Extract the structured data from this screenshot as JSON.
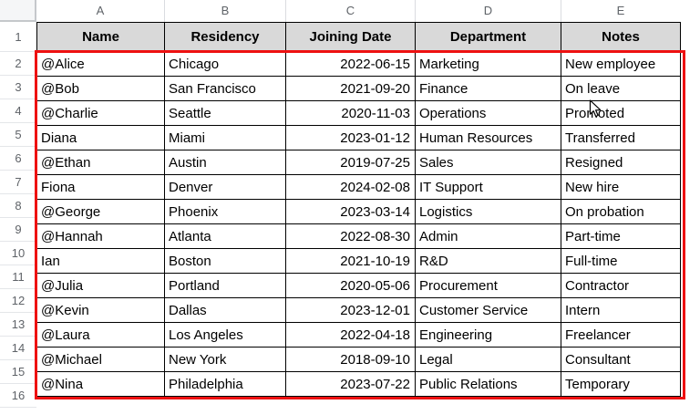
{
  "colors": {
    "table_header_bg": "#d9d9d9",
    "highlight_border": "#ee1111",
    "grid_header_text": "#5f6368"
  },
  "grid": {
    "column_letters": [
      "A",
      "B",
      "C",
      "D",
      "E"
    ],
    "row_numbers": [
      "1",
      "2",
      "3",
      "4",
      "5",
      "6",
      "7",
      "8",
      "9",
      "10",
      "11",
      "12",
      "13",
      "14",
      "15",
      "16"
    ]
  },
  "table": {
    "headers": [
      "Name",
      "Residency",
      "Joining Date",
      "Department",
      "Notes"
    ],
    "rows": [
      {
        "name": "@Alice",
        "residency": "Chicago",
        "joining_date": "2022-06-15",
        "department": "Marketing",
        "notes": "New employee"
      },
      {
        "name": "@Bob",
        "residency": "San Francisco",
        "joining_date": "2021-09-20",
        "department": "Finance",
        "notes": "On leave"
      },
      {
        "name": "@Charlie",
        "residency": "Seattle",
        "joining_date": "2020-11-03",
        "department": "Operations",
        "notes": "Promoted"
      },
      {
        "name": "Diana",
        "residency": "Miami",
        "joining_date": "2023-01-12",
        "department": "Human Resources",
        "notes": "Transferred"
      },
      {
        "name": "@Ethan",
        "residency": "Austin",
        "joining_date": "2019-07-25",
        "department": "Sales",
        "notes": "Resigned"
      },
      {
        "name": "Fiona",
        "residency": "Denver",
        "joining_date": "2024-02-08",
        "department": "IT Support",
        "notes": "New hire"
      },
      {
        "name": "@George",
        "residency": "Phoenix",
        "joining_date": "2023-03-14",
        "department": "Logistics",
        "notes": "On probation"
      },
      {
        "name": "@Hannah",
        "residency": "Atlanta",
        "joining_date": "2022-08-30",
        "department": "Admin",
        "notes": "Part-time"
      },
      {
        "name": "Ian",
        "residency": "Boston",
        "joining_date": "2021-10-19",
        "department": "R&D",
        "notes": "Full-time"
      },
      {
        "name": "@Julia",
        "residency": "Portland",
        "joining_date": "2020-05-06",
        "department": "Procurement",
        "notes": "Contractor"
      },
      {
        "name": "@Kevin",
        "residency": "Dallas",
        "joining_date": "2023-12-01",
        "department": "Customer Service",
        "notes": "Intern"
      },
      {
        "name": "@Laura",
        "residency": "Los Angeles",
        "joining_date": "2022-04-18",
        "department": "Engineering",
        "notes": "Freelancer"
      },
      {
        "name": "@Michael",
        "residency": "New York",
        "joining_date": "2018-09-10",
        "department": "Legal",
        "notes": "Consultant"
      },
      {
        "name": "@Nina",
        "residency": "Philadelphia",
        "joining_date": "2023-07-22",
        "department": "Public Relations",
        "notes": "Temporary"
      }
    ]
  }
}
